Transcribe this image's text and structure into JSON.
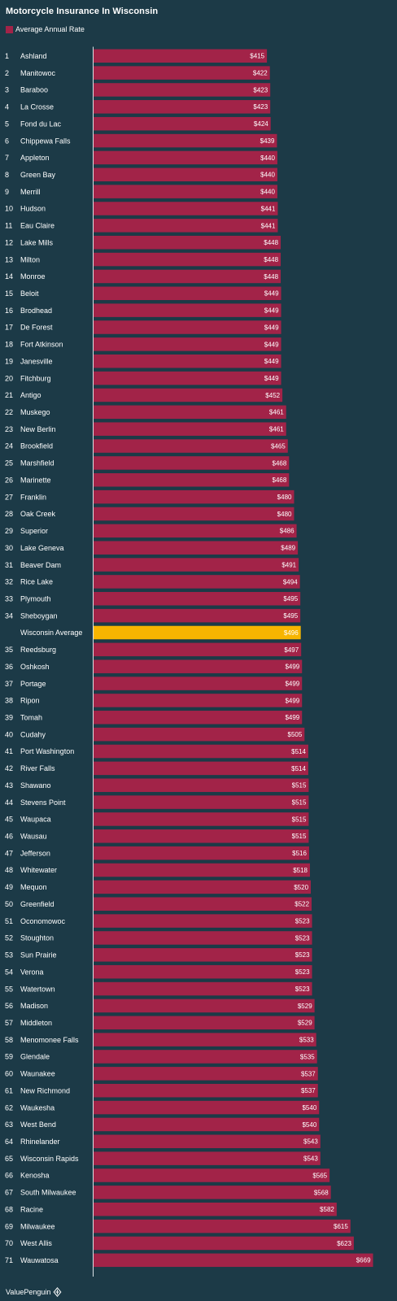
{
  "chart_data": {
    "type": "bar",
    "orientation": "horizontal",
    "title": "Motorcycle Insurance In Wisconsin",
    "legend": {
      "label": "Average Annual Rate",
      "placement": "top-left"
    },
    "value_prefix": "$",
    "xlim": [
      0,
      700
    ],
    "grid": false,
    "series": [
      {
        "name": "Average Annual Rate"
      }
    ],
    "rows": [
      {
        "rank": "1",
        "city": "Ashland",
        "value": 415
      },
      {
        "rank": "2",
        "city": "Manitowoc",
        "value": 422
      },
      {
        "rank": "3",
        "city": "Baraboo",
        "value": 423
      },
      {
        "rank": "4",
        "city": "La Crosse",
        "value": 423
      },
      {
        "rank": "5",
        "city": "Fond du Lac",
        "value": 424
      },
      {
        "rank": "6",
        "city": "Chippewa Falls",
        "value": 439
      },
      {
        "rank": "7",
        "city": "Appleton",
        "value": 440
      },
      {
        "rank": "8",
        "city": "Green Bay",
        "value": 440
      },
      {
        "rank": "9",
        "city": "Merrill",
        "value": 440
      },
      {
        "rank": "10",
        "city": "Hudson",
        "value": 441
      },
      {
        "rank": "11",
        "city": "Eau Claire",
        "value": 441
      },
      {
        "rank": "12",
        "city": "Lake Mills",
        "value": 448
      },
      {
        "rank": "13",
        "city": "Milton",
        "value": 448
      },
      {
        "rank": "14",
        "city": "Monroe",
        "value": 448
      },
      {
        "rank": "15",
        "city": "Beloit",
        "value": 449
      },
      {
        "rank": "16",
        "city": "Brodhead",
        "value": 449
      },
      {
        "rank": "17",
        "city": "De Forest",
        "value": 449
      },
      {
        "rank": "18",
        "city": "Fort Atkinson",
        "value": 449
      },
      {
        "rank": "19",
        "city": "Janesville",
        "value": 449
      },
      {
        "rank": "20",
        "city": "Fitchburg",
        "value": 449
      },
      {
        "rank": "21",
        "city": "Antigo",
        "value": 452
      },
      {
        "rank": "22",
        "city": "Muskego",
        "value": 461
      },
      {
        "rank": "23",
        "city": "New Berlin",
        "value": 461
      },
      {
        "rank": "24",
        "city": "Brookfield",
        "value": 465
      },
      {
        "rank": "25",
        "city": "Marshfield",
        "value": 468
      },
      {
        "rank": "26",
        "city": "Marinette",
        "value": 468
      },
      {
        "rank": "27",
        "city": "Franklin",
        "value": 480
      },
      {
        "rank": "28",
        "city": "Oak Creek",
        "value": 480
      },
      {
        "rank": "29",
        "city": "Superior",
        "value": 486
      },
      {
        "rank": "30",
        "city": "Lake Geneva",
        "value": 489
      },
      {
        "rank": "31",
        "city": "Beaver Dam",
        "value": 491
      },
      {
        "rank": "32",
        "city": "Rice Lake",
        "value": 494
      },
      {
        "rank": "33",
        "city": "Plymouth",
        "value": 495
      },
      {
        "rank": "34",
        "city": "Sheboygan",
        "value": 495
      },
      {
        "rank": "",
        "city": "Wisconsin Average",
        "value": 496,
        "highlight": true
      },
      {
        "rank": "35",
        "city": "Reedsburg",
        "value": 497
      },
      {
        "rank": "36",
        "city": "Oshkosh",
        "value": 499
      },
      {
        "rank": "37",
        "city": "Portage",
        "value": 499
      },
      {
        "rank": "38",
        "city": "Ripon",
        "value": 499
      },
      {
        "rank": "39",
        "city": "Tomah",
        "value": 499
      },
      {
        "rank": "40",
        "city": "Cudahy",
        "value": 505
      },
      {
        "rank": "41",
        "city": "Port Washington",
        "value": 514
      },
      {
        "rank": "42",
        "city": "River Falls",
        "value": 514
      },
      {
        "rank": "43",
        "city": "Shawano",
        "value": 515
      },
      {
        "rank": "44",
        "city": "Stevens Point",
        "value": 515
      },
      {
        "rank": "45",
        "city": "Waupaca",
        "value": 515
      },
      {
        "rank": "46",
        "city": "Wausau",
        "value": 515
      },
      {
        "rank": "47",
        "city": "Jefferson",
        "value": 516
      },
      {
        "rank": "48",
        "city": "Whitewater",
        "value": 518
      },
      {
        "rank": "49",
        "city": "Mequon",
        "value": 520
      },
      {
        "rank": "50",
        "city": "Greenfield",
        "value": 522
      },
      {
        "rank": "51",
        "city": "Oconomowoc",
        "value": 523
      },
      {
        "rank": "52",
        "city": "Stoughton",
        "value": 523
      },
      {
        "rank": "53",
        "city": "Sun Prairie",
        "value": 523
      },
      {
        "rank": "54",
        "city": "Verona",
        "value": 523
      },
      {
        "rank": "55",
        "city": "Watertown",
        "value": 523
      },
      {
        "rank": "56",
        "city": "Madison",
        "value": 529
      },
      {
        "rank": "57",
        "city": "Middleton",
        "value": 529
      },
      {
        "rank": "58",
        "city": "Menomonee Falls",
        "value": 533
      },
      {
        "rank": "59",
        "city": "Glendale",
        "value": 535
      },
      {
        "rank": "60",
        "city": "Waunakee",
        "value": 537
      },
      {
        "rank": "61",
        "city": "New Richmond",
        "value": 537
      },
      {
        "rank": "62",
        "city": "Waukesha",
        "value": 540
      },
      {
        "rank": "63",
        "city": "West Bend",
        "value": 540
      },
      {
        "rank": "64",
        "city": "Rhinelander",
        "value": 543
      },
      {
        "rank": "65",
        "city": "Wisconsin Rapids",
        "value": 543
      },
      {
        "rank": "66",
        "city": "Kenosha",
        "value": 565
      },
      {
        "rank": "67",
        "city": "South Milwaukee",
        "value": 568
      },
      {
        "rank": "68",
        "city": "Racine",
        "value": 582
      },
      {
        "rank": "69",
        "city": "Milwaukee",
        "value": 615
      },
      {
        "rank": "70",
        "city": "West Allis",
        "value": 623
      },
      {
        "rank": "71",
        "city": "Wauwatosa",
        "value": 669
      }
    ]
  },
  "colors": {
    "background": "#1c3a47",
    "bar": "#a22348",
    "highlight_bar": "#f7b500",
    "axis_line": "#dbe3e7",
    "text": "#ffffff"
  },
  "footer": {
    "brand": "ValuePenguin",
    "icon": "penguin-logo-icon"
  }
}
